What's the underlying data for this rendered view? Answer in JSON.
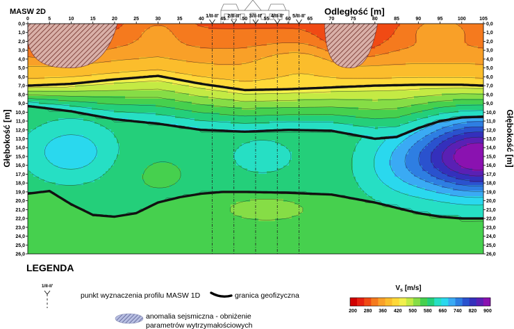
{
  "chart_data": {
    "type": "heatmap",
    "title": "MASW 2D",
    "xlabel": "Odległość [m]",
    "ylabel_left": "Głębokość [m]",
    "ylabel_right": "Głębokość [m]",
    "xlim": [
      0,
      105
    ],
    "ylim": [
      0,
      26
    ],
    "x_ticks": [
      "0",
      "5",
      "10",
      "15",
      "20",
      "25",
      "30",
      "35",
      "40",
      "45",
      "50",
      "55",
      "60",
      "65",
      "70",
      "75",
      "80",
      "85",
      "90",
      "95",
      "100",
      "105"
    ],
    "y_ticks": [
      "0,0",
      "1,0",
      "2,0",
      "3,0",
      "4,0",
      "5,0",
      "6,0",
      "7,0",
      "8,0",
      "9,0",
      "10,0",
      "11,0",
      "12,0",
      "13,0",
      "14,0",
      "15,0",
      "16,0",
      "17,0",
      "18,0",
      "19,0",
      "20,0",
      "21,0",
      "22,0",
      "23,0",
      "24,0",
      "25,0",
      "26,0"
    ],
    "profiles_1d": [
      {
        "label": "1/II-II'",
        "x": 42.5
      },
      {
        "label": "2/II-II'",
        "x": 47.5
      },
      {
        "label": "3/II-II'",
        "x": 52.5
      },
      {
        "label": "4/II-II'",
        "x": 57.5
      },
      {
        "label": "5/II-II'",
        "x": 62.5
      }
    ],
    "boundaries": [
      {
        "x": [
          0,
          10,
          20,
          30,
          40,
          50,
          60,
          70,
          80,
          90,
          100,
          105
        ],
        "depth": [
          7.0,
          6.8,
          6.3,
          5.9,
          6.8,
          7.5,
          7.4,
          7.2,
          7.0,
          6.9,
          6.9,
          7.0
        ]
      },
      {
        "x": [
          0,
          10,
          20,
          30,
          40,
          50,
          60,
          70,
          80,
          85,
          90,
          95,
          100,
          105
        ],
        "depth": [
          9.3,
          9.9,
          10.8,
          11.3,
          12.0,
          12.2,
          12.0,
          12.1,
          13.0,
          12.8,
          11.8,
          11.0,
          10.6,
          10.5
        ]
      },
      {
        "x": [
          0,
          5,
          10,
          15,
          20,
          25,
          30,
          35,
          40,
          45,
          50,
          60,
          70,
          80,
          90,
          95,
          100,
          105
        ],
        "depth": [
          19.2,
          18.9,
          20.4,
          21.6,
          21.8,
          21.4,
          20.2,
          19.6,
          19.2,
          19.0,
          19.0,
          19.1,
          19.3,
          20.2,
          21.4,
          21.8,
          22.0,
          22.0
        ]
      }
    ],
    "anomalies": [
      {
        "x_range": [
          0,
          20
        ],
        "depth_range": [
          0,
          5
        ]
      },
      {
        "x_range": [
          69,
          80
        ],
        "depth_range": [
          0,
          5
        ]
      }
    ],
    "colorbar": {
      "title": "V",
      "title_sub": "s",
      "title_unit": " [m/s]",
      "range": [
        200,
        900
      ],
      "tick_labels": [
        "200",
        "280",
        "360",
        "420",
        "500",
        "580",
        "660",
        "740",
        "820",
        "900"
      ],
      "colors": [
        "#d00000",
        "#e62010",
        "#f04a14",
        "#f57a1e",
        "#f9a028",
        "#fbbd2c",
        "#ffd838",
        "#f2ef4c",
        "#c4ea44",
        "#86dd46",
        "#46d04e",
        "#24cf7a",
        "#26dfc4",
        "#2ad8ee",
        "#3aaaf4",
        "#2e7ee2",
        "#2a52ce",
        "#3430bc",
        "#5a20b4",
        "#8a12b0"
      ]
    },
    "velocity_model": {
      "layer1": {
        "depth_top": 0,
        "depth_bottom": 7,
        "vs_range": [
          230,
          450
        ]
      },
      "layer2": {
        "depth_top": 7,
        "depth_bottom": 12,
        "vs_range": [
          450,
          650
        ]
      },
      "layer3": {
        "depth_top": 12,
        "depth_bottom": 20,
        "vs_range": [
          550,
          850
        ]
      },
      "layer4": {
        "depth_top": 20,
        "depth_bottom": 26,
        "vs_range": [
          520,
          600
        ]
      }
    }
  },
  "legend": {
    "title": "LEGENDA",
    "marker_label": "1/II-II'",
    "profile_text": "punkt wyznaczenia profilu MASW 1D",
    "boundary_text": "granica geofizyczna",
    "anomaly_text_1": "anomalia sejsmiczna - obniżenie",
    "anomaly_text_2": "parametrów wytrzymałościowych"
  }
}
